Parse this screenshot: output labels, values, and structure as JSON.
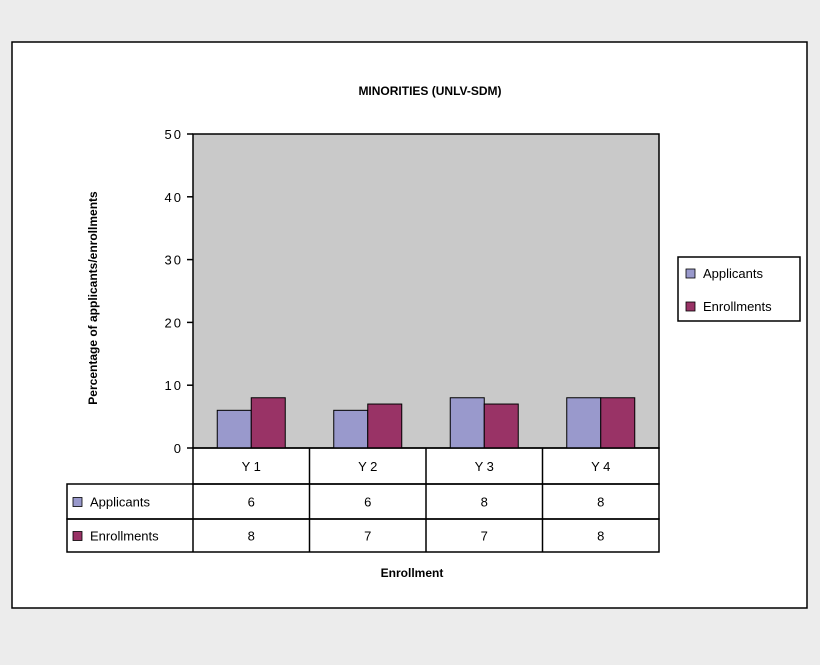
{
  "chart_data": {
    "type": "bar",
    "title": "MINORITIES (UNLV-SDM)",
    "xlabel": "Enrollment",
    "ylabel": "Percentage of applicants/enrollments",
    "categories": [
      "Y 1",
      "Y 2",
      "Y 3",
      "Y 4"
    ],
    "yticks": [
      "0",
      "10",
      "20",
      "30",
      "40",
      "50"
    ],
    "ylim": [
      0,
      50
    ],
    "grid": false,
    "legend_position": "right",
    "data_table": true,
    "series": [
      {
        "name": "Applicants",
        "color": "#9999cc",
        "values": [
          6,
          6,
          8,
          8
        ],
        "labels": [
          "6",
          "6",
          "8",
          "8"
        ]
      },
      {
        "name": "Enrollments",
        "color": "#993366",
        "values": [
          8,
          7,
          7,
          8
        ],
        "labels": [
          "8",
          "7",
          "7",
          "8"
        ]
      }
    ],
    "plot_background": "#c9c9c9"
  }
}
